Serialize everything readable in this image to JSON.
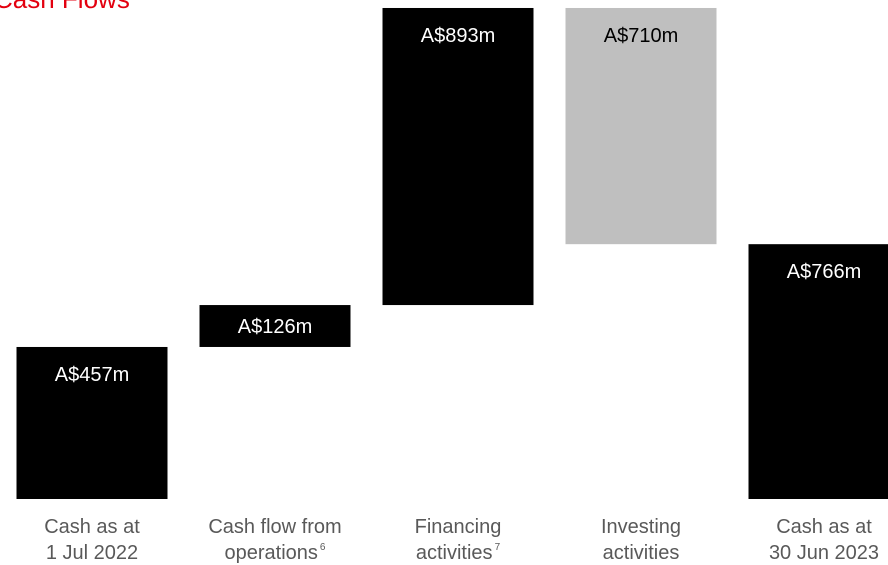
{
  "chart_data": {
    "type": "waterfall",
    "title": "Cash Flows",
    "categories": [
      [
        "Cash as at",
        "1 Jul 2022"
      ],
      [
        "Cash flow from",
        "operations"
      ],
      [
        "Financing",
        "activities"
      ],
      [
        "Investing",
        "activities"
      ],
      [
        "Cash as at",
        "30 Jun 2023"
      ]
    ],
    "footnotes": [
      null,
      "6",
      "7",
      null,
      null
    ],
    "kinds": [
      "total",
      "delta",
      "delta",
      "delta",
      "total"
    ],
    "values": [
      457,
      126,
      893,
      -710,
      766
    ],
    "value_labels": [
      "A$457m",
      "A$126m",
      "A$893m",
      "A$710m",
      "A$766m"
    ],
    "color": "#000000",
    "decrease_color": "#bfbfbf",
    "ylim": [
      0,
      1500
    ]
  }
}
